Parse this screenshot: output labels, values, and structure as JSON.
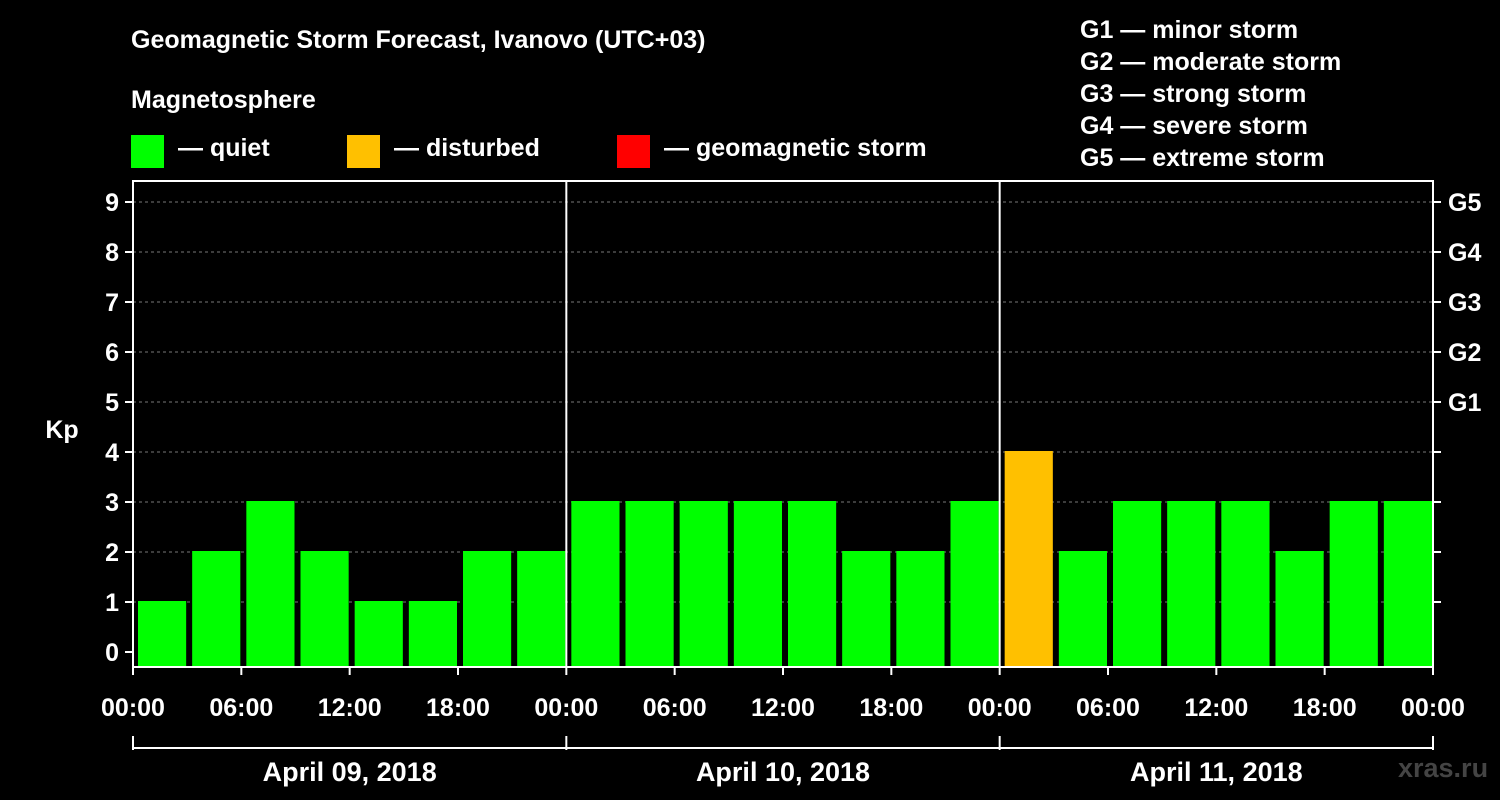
{
  "header": {
    "title": "Geomagnetic Storm Forecast, Ivanovo (UTC+03)",
    "subtitle": "Magnetosphere"
  },
  "legend": [
    {
      "label": "— quiet",
      "color": "#00ff00"
    },
    {
      "label": "— disturbed",
      "color": "#ffc000"
    },
    {
      "label": "— geomagnetic storm",
      "color": "#ff0000"
    }
  ],
  "scale": [
    "G1 — minor storm",
    "G2 — moderate storm",
    "G3 — strong storm",
    "G4 — severe storm",
    "G5 — extreme storm"
  ],
  "watermark": "xras.ru",
  "chart_data": {
    "type": "bar",
    "title": "Geomagnetic Storm Forecast, Ivanovo (UTC+03)",
    "ylabel": "Kp",
    "ylim": [
      0,
      9
    ],
    "yticks": [
      "0",
      "1",
      "2",
      "3",
      "4",
      "5",
      "6",
      "7",
      "8",
      "9"
    ],
    "right_labels": [
      {
        "kp": 5,
        "label": "G1"
      },
      {
        "kp": 6,
        "label": "G2"
      },
      {
        "kp": 7,
        "label": "G3"
      },
      {
        "kp": 8,
        "label": "G4"
      },
      {
        "kp": 9,
        "label": "G5"
      }
    ],
    "x_tick_labels": [
      "00:00",
      "06:00",
      "12:00",
      "18:00",
      "00:00",
      "06:00",
      "12:00",
      "18:00",
      "00:00",
      "06:00",
      "12:00",
      "18:00",
      "00:00"
    ],
    "days": [
      "April 09, 2018",
      "April 10, 2018",
      "April 11, 2018"
    ],
    "interval_hours": 3,
    "values": [
      1,
      2,
      3,
      2,
      1,
      1,
      2,
      2,
      3,
      3,
      3,
      3,
      3,
      2,
      2,
      3,
      4,
      2,
      3,
      3,
      3,
      2,
      3,
      3
    ],
    "colors": {
      "quiet": "#00ff00",
      "disturbed": "#ffc000",
      "storm": "#ff0000"
    },
    "grid": true
  }
}
